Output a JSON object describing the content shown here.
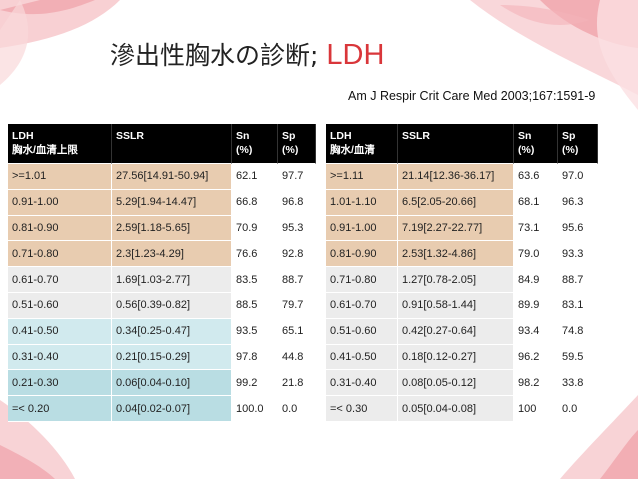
{
  "slide": {
    "title": "滲出性胸水の診断;",
    "title_accent": "LDH",
    "citation": "Am J Respir Crit Care Med 2003;167:1591-9"
  },
  "left_table": {
    "headers": [
      "LDH\n胸水/血清上限",
      "SSLR",
      "Sn\n(%)",
      "Sp\n(%)"
    ],
    "rows": [
      [
        ">=1.01",
        "27.56[14.91-50.94]",
        "62.1",
        "97.7"
      ],
      [
        "0.91-1.00",
        "5.29[1.94-14.47]",
        "66.8",
        "96.8"
      ],
      [
        "0.81-0.90",
        "2.59[1.18-5.65]",
        "70.9",
        "95.3"
      ],
      [
        "0.71-0.80",
        "2.3[1.23-4.29]",
        "76.6",
        "92.8"
      ],
      [
        "0.61-0.70",
        "1.69[1.03-2.77]",
        "83.5",
        "88.7"
      ],
      [
        "0.51-0.60",
        "0.56[0.39-0.82]",
        "88.5",
        "79.7"
      ],
      [
        "0.41-0.50",
        "0.34[0.25-0.47]",
        "93.5",
        "65.1"
      ],
      [
        "0.31-0.40",
        "0.21[0.15-0.29]",
        "97.8",
        "44.8"
      ],
      [
        "0.21-0.30",
        "0.06[0.04-0.10]",
        "99.2",
        "21.8"
      ],
      [
        "=< 0.20",
        "0.04[0.02-0.07]",
        "100.0",
        "0.0"
      ]
    ]
  },
  "right_table": {
    "headers": [
      "LDH\n胸水/血清",
      "SSLR",
      "Sn\n(%)",
      "Sp\n(%)"
    ],
    "rows": [
      [
        ">=1.11",
        "21.14[12.36-36.17]",
        "63.6",
        "97.0"
      ],
      [
        "1.01-1.10",
        "6.5[2.05-20.66]",
        "68.1",
        "96.3"
      ],
      [
        "0.91-1.00",
        "7.19[2.27-22.77]",
        "73.1",
        "95.6"
      ],
      [
        "0.81-0.90",
        "2.53[1.32-4.86]",
        "79.0",
        "93.3"
      ],
      [
        "0.71-0.80",
        "1.27[0.78-2.05]",
        "84.9",
        "88.7"
      ],
      [
        "0.61-0.70",
        "0.91[0.58-1.44]",
        "89.9",
        "83.1"
      ],
      [
        "0.51-0.60",
        "0.42[0.27-0.64]",
        "93.4",
        "74.8"
      ],
      [
        "0.41-0.50",
        "0.18[0.12-0.27]",
        "96.2",
        "59.5"
      ],
      [
        "0.31-0.40",
        "0.08[0.05-0.12]",
        "98.2",
        "33.8"
      ],
      [
        "=< 0.30",
        "0.05[0.04-0.08]",
        "100",
        "0.0"
      ]
    ]
  },
  "colors": {
    "header_bg": "#000000",
    "tan_row": "#e8ccb0",
    "gray_row": "#ececec",
    "blue_row": "#d1eaee",
    "title_accent": "#d9363a",
    "petal": "#f2a7ad"
  }
}
